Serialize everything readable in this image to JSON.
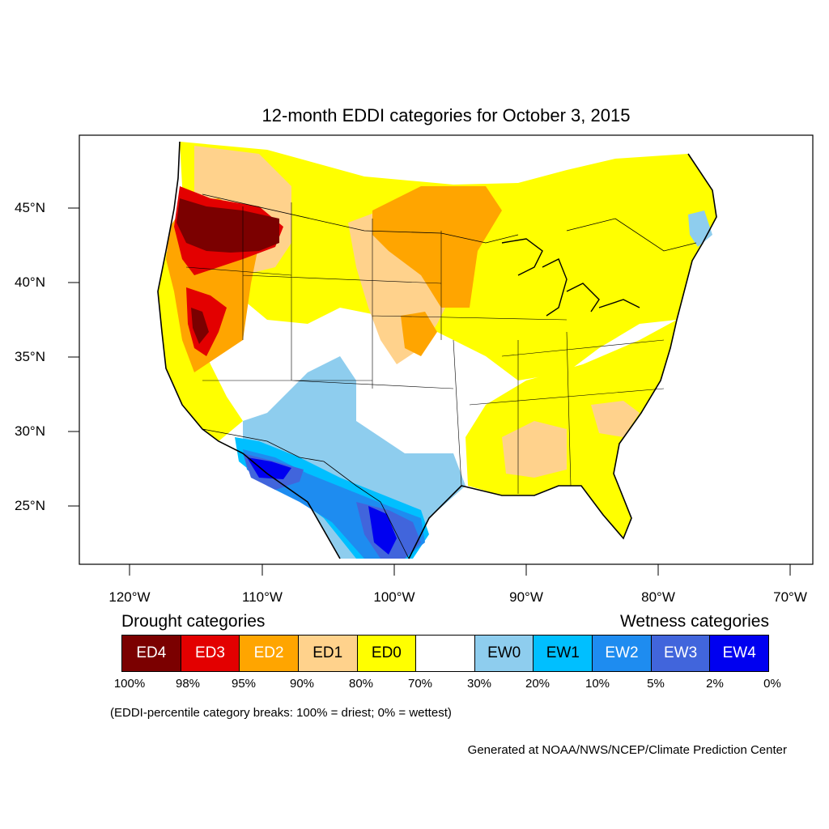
{
  "title": "12-month EDDI categories for October 3, 2015",
  "lat_labels": [
    "45°N",
    "40°N",
    "35°N",
    "30°N",
    "25°N"
  ],
  "lon_labels": [
    "120°W",
    "110°W",
    "100°W",
    "90°W",
    "80°W",
    "70°W"
  ],
  "legend": {
    "drought_heading": "Drought categories",
    "wetness_heading": "Wetness categories",
    "categories": [
      {
        "label": "ED4",
        "color": "#7b0000",
        "text_color": "#ffffff"
      },
      {
        "label": "ED3",
        "color": "#e30000",
        "text_color": "#ffffff"
      },
      {
        "label": "ED2",
        "color": "#ffa500",
        "text_color": "#ffffff"
      },
      {
        "label": "ED1",
        "color": "#ffd28c",
        "text_color": "#000000"
      },
      {
        "label": "ED0",
        "color": "#ffff00",
        "text_color": "#000000"
      },
      {
        "label": "",
        "color": "#ffffff",
        "text_color": "#000000"
      },
      {
        "label": "EW0",
        "color": "#8ecdee",
        "text_color": "#000000"
      },
      {
        "label": "EW1",
        "color": "#00bfff",
        "text_color": "#000000"
      },
      {
        "label": "EW2",
        "color": "#1e8cf0",
        "text_color": "#ffffff"
      },
      {
        "label": "EW3",
        "color": "#4165dc",
        "text_color": "#ffffff"
      },
      {
        "label": "EW4",
        "color": "#0000f0",
        "text_color": "#ffffff"
      }
    ],
    "percent_breaks": [
      "100%",
      "98%",
      "95%",
      "90%",
      "80%",
      "70%",
      "30%",
      "20%",
      "10%",
      "5%",
      "2%",
      "0%"
    ]
  },
  "note": "(EDDI-percentile category breaks: 100% = driest; 0% = wettest)",
  "credit": "Generated at NOAA/NWS/NCEP/Climate Prediction Center"
}
